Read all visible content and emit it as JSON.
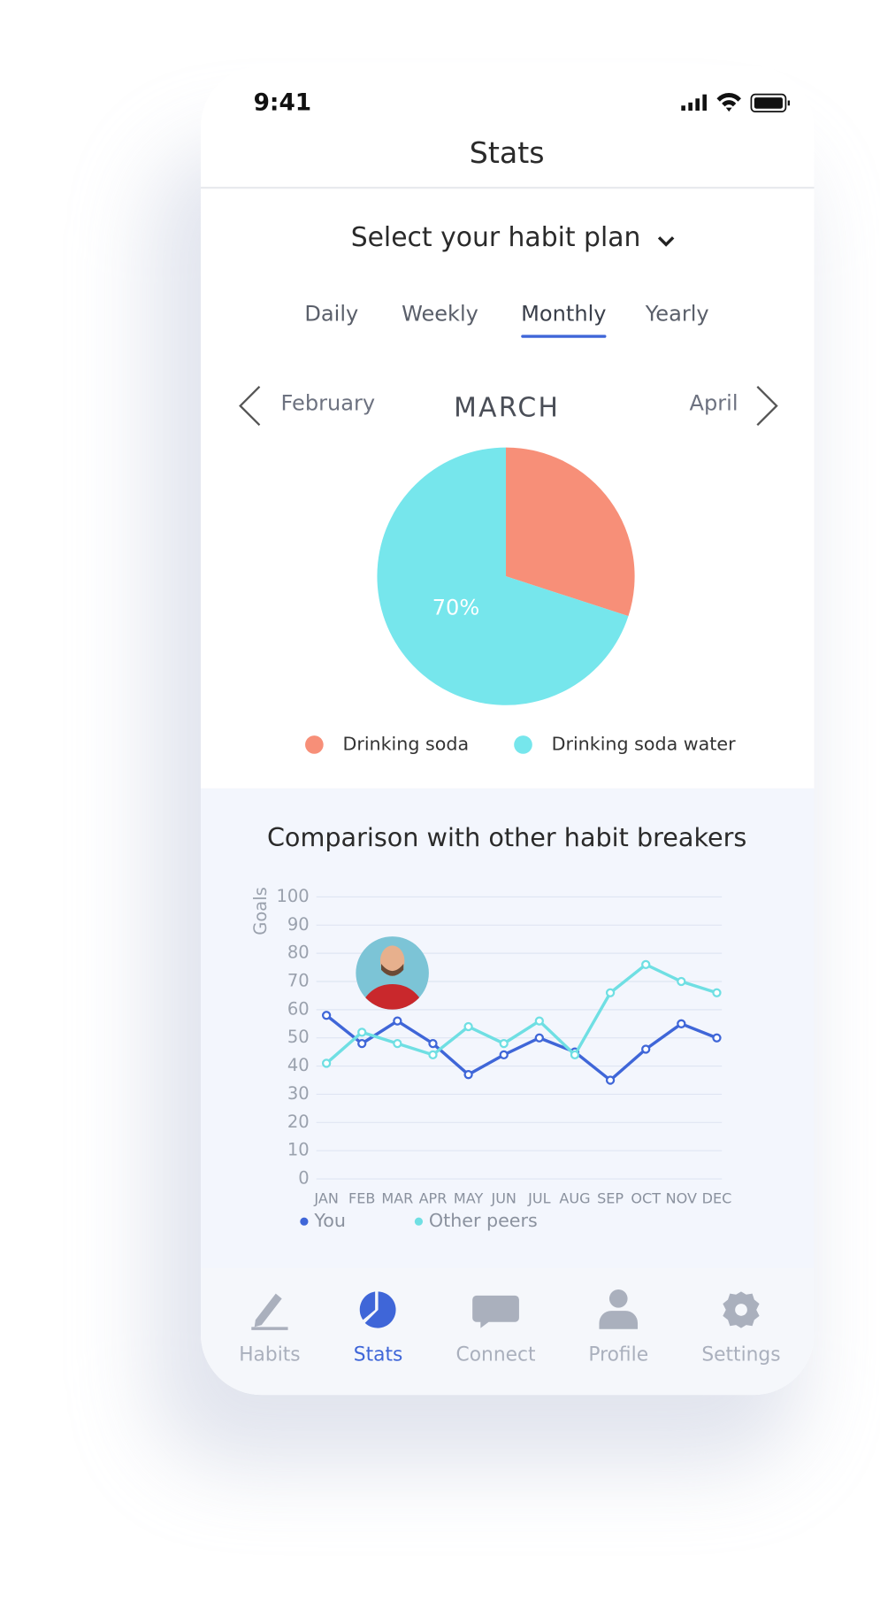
{
  "status_bar": {
    "time": "9:41"
  },
  "header": {
    "title": "Stats"
  },
  "plan_selector": {
    "label": "Select your habit plan"
  },
  "period_tabs": {
    "items": [
      "Daily",
      "Weekly",
      "Monthly",
      "Yearly"
    ],
    "selected": "Monthly"
  },
  "month_nav": {
    "previous": "February",
    "current": "MARCH",
    "next": "April"
  },
  "pie_chart": {
    "type": "pie",
    "categories": [
      "Drinking soda",
      "Drinking soda water"
    ],
    "values": [
      30,
      70
    ],
    "value_labels": [
      null,
      "70%"
    ],
    "colors": [
      "#f78f78",
      "#76e6ec"
    ]
  },
  "line_chart": {
    "type": "line",
    "title": "Comparison with other habit breakers",
    "y_label": "Goals",
    "categories": [
      "JAN",
      "FEB",
      "MAR",
      "APR",
      "MAY",
      "JUN",
      "JUL",
      "AUG",
      "SEP",
      "OCT",
      "NOV",
      "DEC"
    ],
    "series": [
      {
        "name": "You",
        "color": "#3f66d8",
        "values": [
          58,
          48,
          56,
          48,
          37,
          44,
          50,
          45,
          35,
          46,
          55,
          50
        ]
      },
      {
        "name": "Other peers",
        "color": "#6fdfe3",
        "values": [
          41,
          52,
          48,
          44,
          54,
          48,
          56,
          44,
          66,
          76,
          70,
          66
        ]
      }
    ],
    "ylim": [
      0,
      100
    ],
    "yticks": [
      0,
      10,
      20,
      30,
      40,
      50,
      60,
      70,
      80,
      90,
      100
    ],
    "grid": true
  },
  "bottom_nav": {
    "items": [
      "Habits",
      "Stats",
      "Connect",
      "Profile",
      "Settings"
    ],
    "selected": "Stats"
  }
}
